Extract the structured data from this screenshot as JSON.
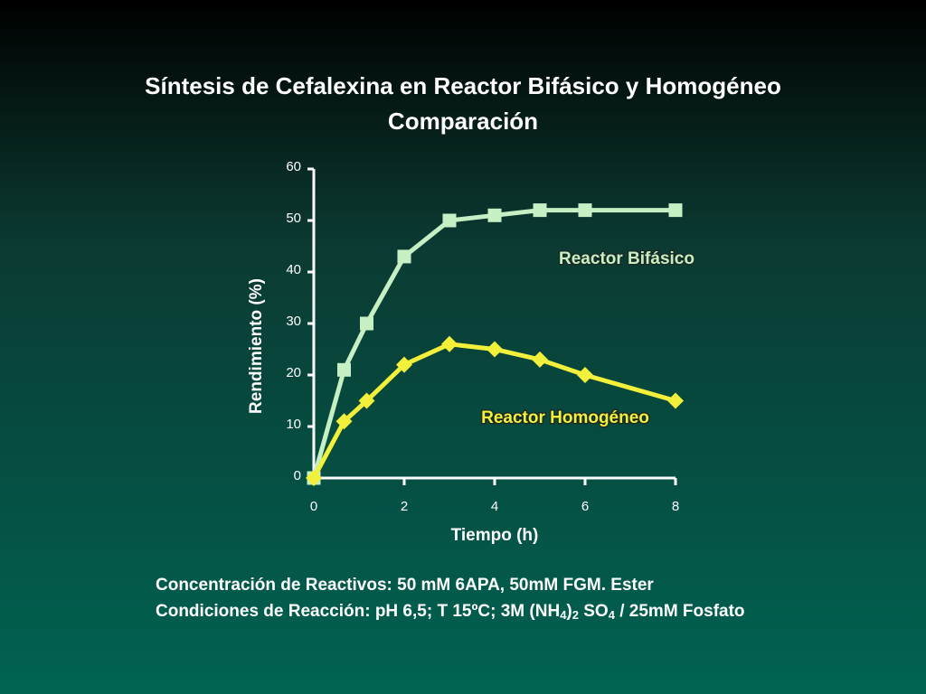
{
  "chart_data": {
    "type": "line",
    "title": [
      "Síntesis de Cefalexina en Reactor Bifásico y Homogéneo",
      "Comparación"
    ],
    "x_label": "Tiempo (h)",
    "y_label": "Rendimiento (%)",
    "xlim": [
      0,
      8
    ],
    "xticks": [
      0,
      2,
      4,
      6,
      8
    ],
    "ylim": [
      0,
      60
    ],
    "yticks": [
      0,
      10,
      20,
      30,
      40,
      50,
      60
    ],
    "series": [
      {
        "name": "Reactor Bifásico",
        "color": "#c6f0c4",
        "marker": "square",
        "x": [
          0,
          0.67,
          1.17,
          2,
          3,
          4,
          5,
          6,
          8
        ],
        "values": [
          0,
          21,
          30,
          43,
          50,
          51,
          52,
          52,
          52
        ]
      },
      {
        "name": "Reactor Homogéneo",
        "color": "#f2f03a",
        "marker": "diamond",
        "x": [
          0,
          0.67,
          1.17,
          2,
          3,
          4,
          5,
          6,
          8
        ],
        "values": [
          0,
          11,
          15,
          22,
          26,
          25,
          23,
          20,
          15
        ]
      }
    ],
    "footnote": [
      "Concentración de Reactivos: 50 mM 6APA, 50mM FGM. Ester",
      [
        "Condiciones de Reacción: pH 6,5; T 15ºC; 3M (NH",
        "4",
        ")",
        "2",
        " SO",
        "4",
        " / 25mM  Fosfato"
      ]
    ]
  }
}
